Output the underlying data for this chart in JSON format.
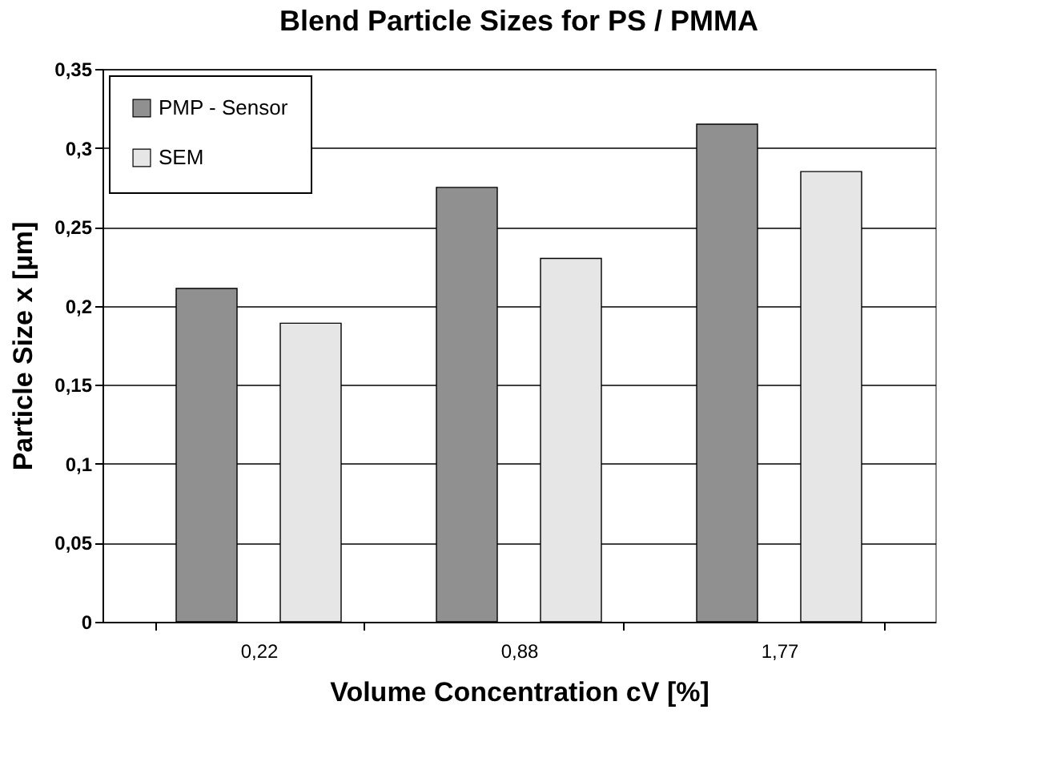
{
  "chart_data": {
    "type": "bar",
    "title": "Blend Particle Sizes for   PS / PMMA",
    "xlabel": "Volume Concentration  cV [%]",
    "ylabel": "Particle Size  x [µm]",
    "categories": [
      "0,22",
      "0,88",
      "1,77"
    ],
    "series": [
      {
        "name": "PMP - Sensor",
        "color": "#909090",
        "values": [
          0.211,
          0.275,
          0.315
        ]
      },
      {
        "name": "SEM",
        "color": "#e6e6e6",
        "values": [
          0.189,
          0.23,
          0.285
        ]
      }
    ],
    "ylim": [
      0,
      0.35
    ],
    "yticks": [
      0,
      {
        "value": 0.05,
        "label": "0,05"
      },
      {
        "value": 0.1,
        "label": "0,1"
      },
      {
        "value": 0.15,
        "label": "0,15"
      },
      {
        "value": 0.2,
        "label": "0,2"
      },
      {
        "value": 0.25,
        "label": "0,25"
      },
      {
        "value": 0.3,
        "label": "0,3"
      },
      {
        "value": 0.35,
        "label": "0,35"
      }
    ],
    "grid": "y",
    "legend": "top left"
  }
}
